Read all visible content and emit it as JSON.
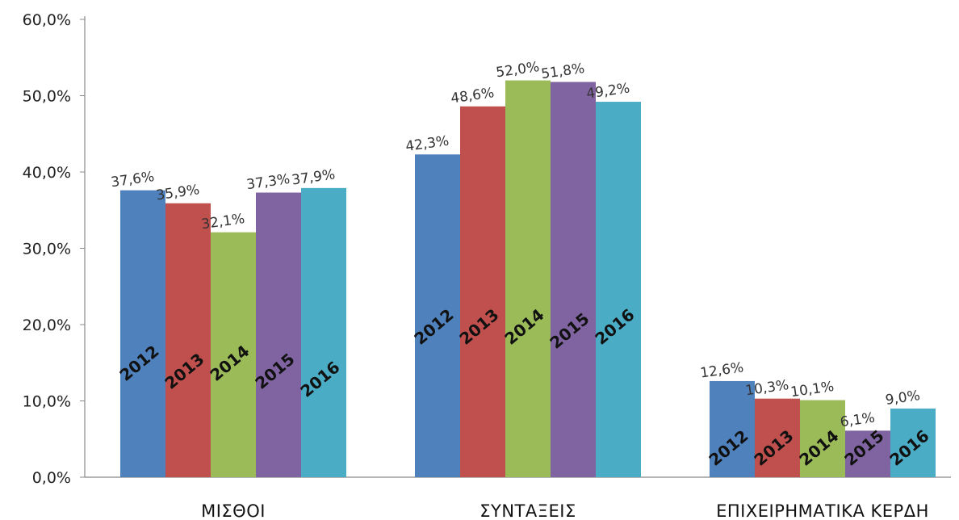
{
  "chart_data": {
    "type": "bar",
    "categories": [
      "ΜΙΣΘΟΙ",
      "ΣΥΝΤΑΞΕΙΣ",
      "ΕΠΙΧΕΙΡΗΜΑΤΙΚΑ ΚΕΡΔΗ"
    ],
    "series": [
      {
        "year_label": "2012",
        "color": "#4f81bd",
        "values": [
          37.6,
          42.3,
          12.6
        ],
        "labels": [
          "37,6%",
          "42,3%",
          "12,6%"
        ]
      },
      {
        "year_label": "2013",
        "color": "#c0504d",
        "values": [
          35.9,
          48.6,
          10.3
        ],
        "labels": [
          "35,9%",
          "48,6%",
          "10,3%"
        ]
      },
      {
        "year_label": "2014",
        "color": "#9bbb59",
        "values": [
          32.1,
          52.0,
          10.1
        ],
        "labels": [
          "32,1%",
          "52,0%",
          "10,1%"
        ]
      },
      {
        "year_label": "2015",
        "color": "#8064a2",
        "values": [
          37.3,
          51.8,
          6.1
        ],
        "labels": [
          "37,3%",
          "51,8%",
          "6,1%"
        ]
      },
      {
        "year_label": "2016",
        "color": "#4bacc6",
        "values": [
          37.9,
          49.2,
          9.0
        ],
        "labels": [
          "37,9%",
          "49,2%",
          "9,0%"
        ]
      }
    ],
    "yticks": [
      "0,0%",
      "10,0%",
      "20,0%",
      "30,0%",
      "40,0%",
      "50,0%",
      "60,0%"
    ],
    "ylim": [
      0,
      60
    ],
    "grid": false,
    "legend": "none"
  }
}
